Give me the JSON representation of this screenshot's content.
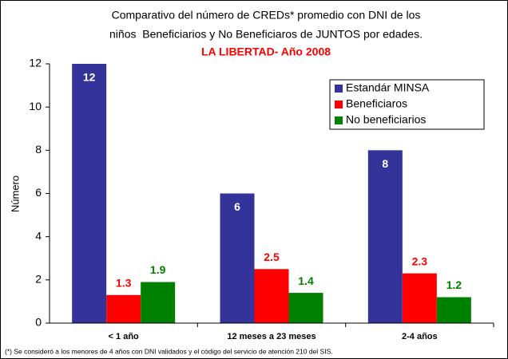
{
  "chart_data": {
    "type": "bar",
    "title": [
      "Comparativo del número de CREDs* promedio con DNI de los",
      "niños  Beneficiarios y No Beneficiaros de JUNTOS por edades."
    ],
    "subtitle": "LA LIBERTAD- Año 2008",
    "y_label": "Número",
    "categories": [
      "< 1 año",
      "12 meses a 23 meses",
      "2-4 años"
    ],
    "series": [
      {
        "name": "Estandár MINSA",
        "color": "#333399",
        "label_color": "#ffffff",
        "values": [
          12,
          6,
          8
        ]
      },
      {
        "name": "Beneficiaros",
        "color": "#ff0000",
        "label_color": "#ff0000",
        "values": [
          1.3,
          2.5,
          2.3
        ]
      },
      {
        "name": "No beneficiarios",
        "color": "#008000",
        "label_color": "#008000",
        "values": [
          1.9,
          1.4,
          1.2
        ]
      }
    ],
    "ylim": [
      0,
      12
    ],
    "yticks": [
      0,
      2,
      4,
      6,
      8,
      10,
      12
    ],
    "legend": "upper right",
    "footnote": "(*) Se consideró a los menores de 4 años con DNI validados y el código del servicio de atención 210 del SIS."
  }
}
